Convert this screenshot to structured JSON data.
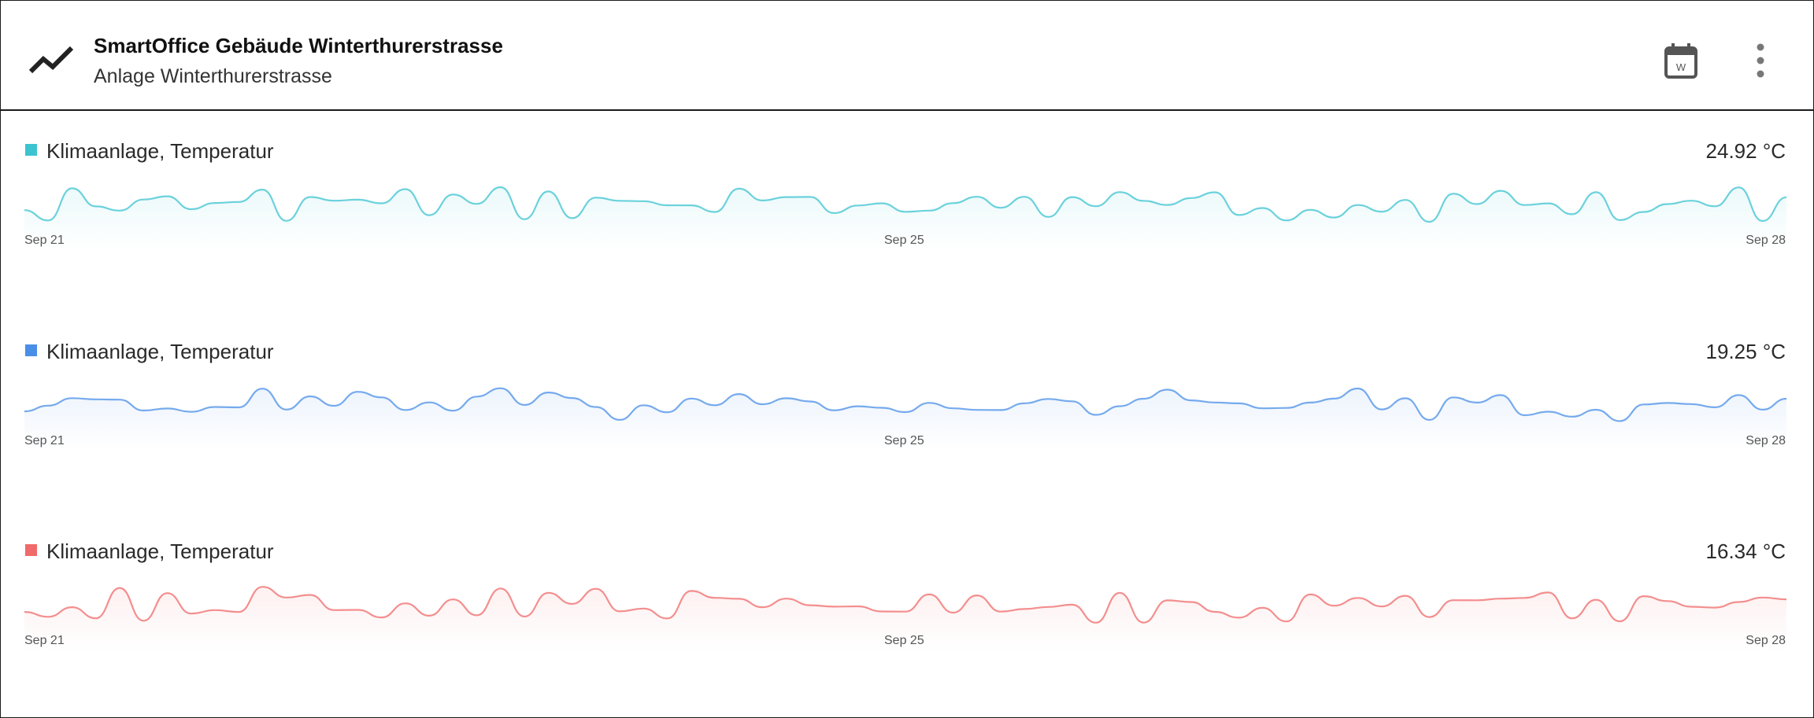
{
  "header": {
    "title": "SmartOffice Gebäude Winterthurerstrasse",
    "subtitle": "Anlage Winterthurerstrasse",
    "app_icon": "trending-line-icon",
    "calendar_button": {
      "icon": "calendar-icon",
      "label": "W"
    },
    "more_button": {
      "icon": "more-vert-icon"
    }
  },
  "panels": [
    {
      "label": "Klimaanlage, Temperatur",
      "value": "24.92 °C",
      "color": "#3bc3d0",
      "ticks": [
        "Sep 21",
        "Sep 25",
        "Sep 28"
      ]
    },
    {
      "label": "Klimaanlage, Temperatur",
      "value": "19.25 °C",
      "color": "#4a8fe7",
      "ticks": [
        "Sep 21",
        "Sep 25",
        "Sep 28"
      ]
    },
    {
      "label": "Klimaanlage, Temperatur",
      "value": "16.34 °C",
      "color": "#f06a6a",
      "ticks": [
        "Sep 21",
        "Sep 25",
        "Sep 28"
      ]
    }
  ]
}
